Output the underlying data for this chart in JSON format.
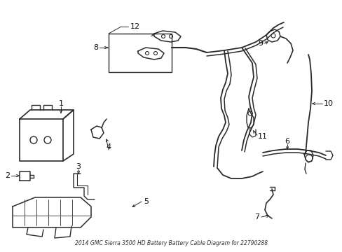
{
  "title": "2014 GMC Sierra 3500 HD Battery Battery Cable Diagram for 22790288",
  "bg_color": "#ffffff",
  "line_color": "#2a2a2a",
  "label_color": "#111111",
  "figsize": [
    4.89,
    3.6
  ],
  "dpi": 100
}
